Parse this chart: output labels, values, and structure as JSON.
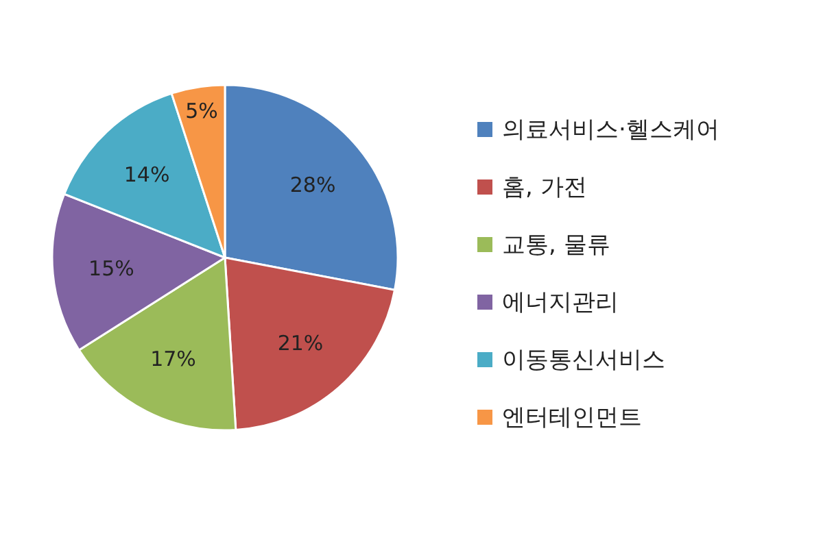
{
  "chart_data": {
    "type": "pie",
    "categories": [
      "의료서비스·헬스케어",
      "홈, 가전",
      "교통, 물류",
      "에너지관리",
      "이동통신서비스",
      "엔터테인먼트"
    ],
    "values": [
      28,
      21,
      17,
      15,
      14,
      5
    ],
    "colors": [
      "#4f81bd",
      "#c0504d",
      "#9bbb59",
      "#8064a2",
      "#4bacc6",
      "#f79646"
    ],
    "value_labels": [
      "28%",
      "21%",
      "17%",
      "15%",
      "14%",
      "5%"
    ],
    "legend": "right"
  }
}
